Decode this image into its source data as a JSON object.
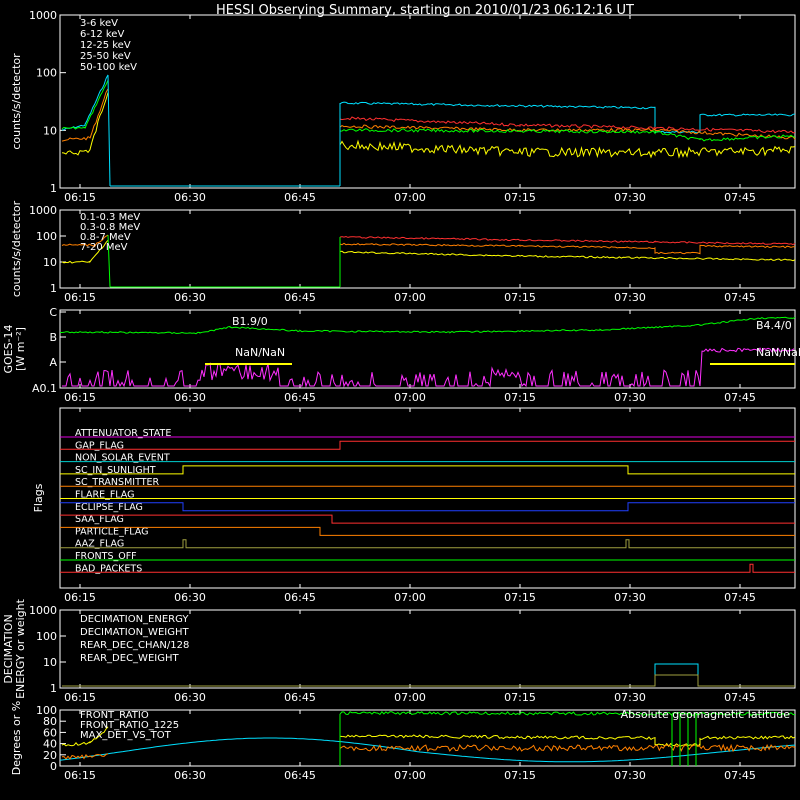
{
  "title": "HESSI Observing Summary, starting on 2010/01/23 06:12:16 UT",
  "time_ticks": [
    "06:15",
    "06:30",
    "06:45",
    "07:00",
    "07:15",
    "07:30",
    "07:45"
  ],
  "chart_data": [
    {
      "id": "panel-lo",
      "type": "line",
      "ylabel": "counts/s/detector",
      "yscale": "log",
      "ylim": [
        1,
        1000
      ],
      "yticks": [
        "1",
        "10",
        "100",
        "1000"
      ],
      "series": [
        {
          "name": "3-6 keV",
          "color": "#ff3030"
        },
        {
          "name": "6-12 keV",
          "color": "#ff8000"
        },
        {
          "name": "12-25 keV",
          "color": "#ffff00"
        },
        {
          "name": "25-50 keV",
          "color": "#00ff00"
        },
        {
          "name": "50-100 keV",
          "color": "#00e0ff"
        }
      ]
    },
    {
      "id": "panel-hi",
      "type": "line",
      "ylabel": "counts/s/detector",
      "yscale": "log",
      "ylim": [
        1,
        1000
      ],
      "yticks": [
        "1",
        "10",
        "100",
        "1000"
      ],
      "series": [
        {
          "name": "0.1-0.3 MeV",
          "color": "#ff3030"
        },
        {
          "name": "0.3-0.8 MeV",
          "color": "#ff8000"
        },
        {
          "name": "0.8-7 MeV",
          "color": "#ffff00"
        },
        {
          "name": "7-20 MeV",
          "color": "#00ff00"
        }
      ]
    },
    {
      "id": "panel-goes",
      "type": "line",
      "ylabel": "GOES-14",
      "ylabel2": "[W m⁻²]",
      "yticks": [
        "A0.1",
        "A",
        "B",
        "C"
      ],
      "annotations": [
        "B1.9/0",
        "B4.4/0",
        "NaN/NaN",
        "NaN/NaN"
      ]
    },
    {
      "id": "panel-flags",
      "type": "line",
      "ylabel": "Flags",
      "flags": [
        {
          "name": "ATTENUATOR_STATE",
          "color": "#e000e0"
        },
        {
          "name": "GAP_FLAG",
          "color": "#ff3030"
        },
        {
          "name": "NON_SOLAR_EVENT",
          "color": "#00d0d0"
        },
        {
          "name": "SC_IN_SUNLIGHT",
          "color": "#ffff00"
        },
        {
          "name": "SC_TRANSMITTER",
          "color": "#ff8000"
        },
        {
          "name": "FLARE_FLAG",
          "color": "#ffff00"
        },
        {
          "name": "ECLIPSE_FLAG",
          "color": "#2040ff"
        },
        {
          "name": "SAA_FLAG",
          "color": "#ff3030"
        },
        {
          "name": "PARTICLE_FLAG",
          "color": "#ff8000"
        },
        {
          "name": "AAZ_FLAG",
          "color": "#a0a040"
        },
        {
          "name": "FRONTS_OFF",
          "color": "#00ff00"
        },
        {
          "name": "BAD_PACKETS",
          "color": "#ff3030"
        }
      ]
    },
    {
      "id": "panel-dec",
      "type": "line",
      "ylabel": "DECIMATION",
      "ylabel2": "ENERGY or weight",
      "yscale": "log",
      "ylim": [
        1,
        1000
      ],
      "yticks": [
        "1",
        "10",
        "100",
        "1000"
      ],
      "series": [
        {
          "name": "DECIMATION_ENERGY",
          "color": "#00ff00"
        },
        {
          "name": "DECIMATION_WEIGHT",
          "color": "#ff8000"
        },
        {
          "name": "REAR_DEC_CHAN/128",
          "color": "#00e0ff"
        },
        {
          "name": "REAR_DEC_WEIGHT",
          "color": "#a0a040"
        }
      ]
    },
    {
      "id": "panel-ratio",
      "type": "line",
      "ylabel": "Degrees or %",
      "ylim": [
        0,
        100
      ],
      "yticks": [
        "0",
        "20",
        "40",
        "60",
        "80",
        "100"
      ],
      "series": [
        {
          "name": "FRONT_RATIO",
          "color": "#ffff00"
        },
        {
          "name": "FRONT_RATIO_1225",
          "color": "#00ff00"
        },
        {
          "name": "MAX_DET_VS_TOT",
          "color": "#ff8000"
        }
      ],
      "annotation": "Absolute geomagnetic latitude"
    }
  ]
}
